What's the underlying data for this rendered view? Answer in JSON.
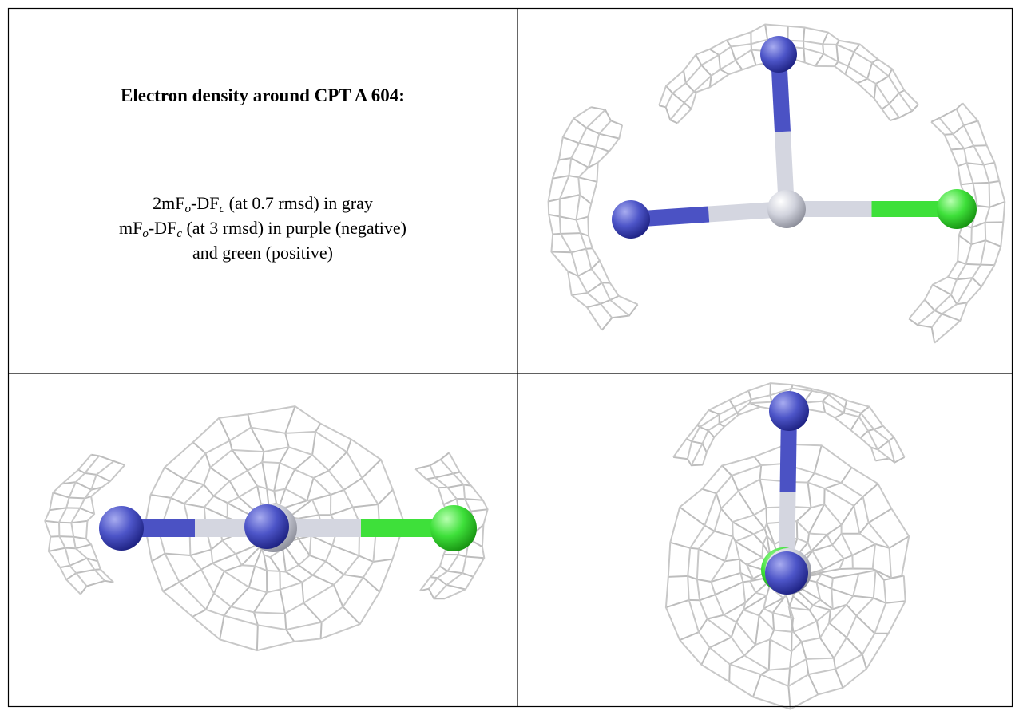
{
  "caption": {
    "title": "Electron density around CPT A 604:",
    "lines": [
      [
        "2mF",
        "o",
        "-DF",
        "c",
        " (at 0.7 rmsd) in gray"
      ],
      [
        "mF",
        "o",
        "-DF",
        "c",
        " (at 3 rmsd) in purple (negative)"
      ],
      [
        "and green (positive)"
      ]
    ]
  }
}
